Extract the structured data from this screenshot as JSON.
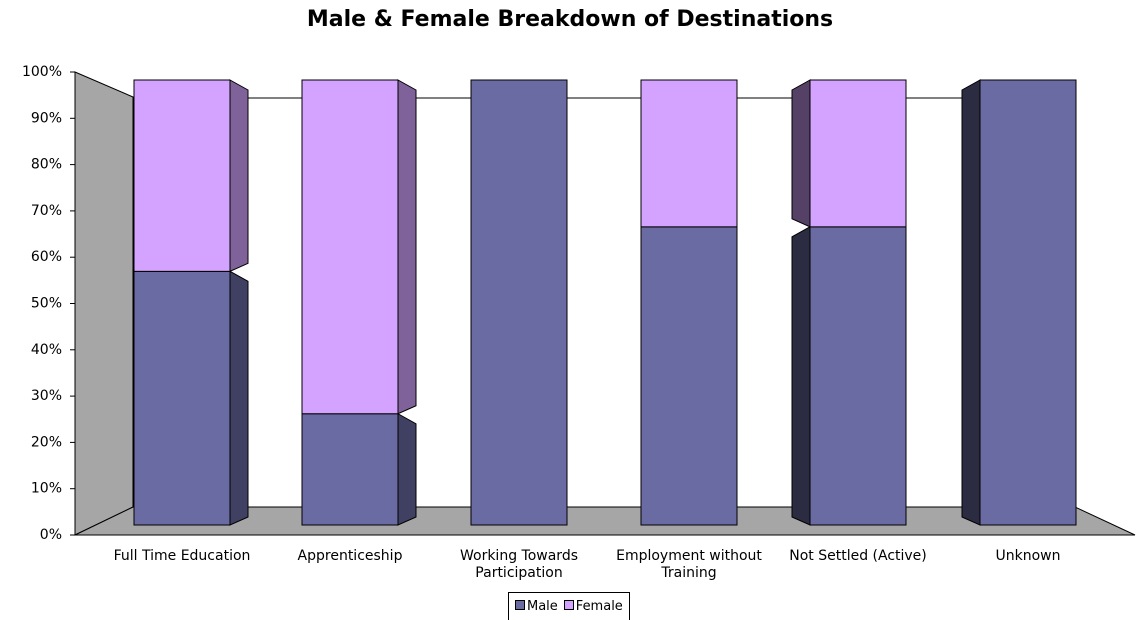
{
  "chart_data": {
    "type": "stacked_bar_3d",
    "title": "Male & Female Breakdown of Destinations",
    "categories": [
      "Full Time Education",
      "Apprenticeship",
      "Working Towards Participation",
      "Employment without Training",
      "Not Settled (Active)",
      "Unknown"
    ],
    "series": [
      {
        "name": "Male",
        "color": "#6b6ba3",
        "values": [
          57,
          25,
          100,
          67,
          67,
          100
        ]
      },
      {
        "name": "Female",
        "color": "#d4a3ff",
        "values": [
          43,
          75,
          0,
          33,
          33,
          0
        ]
      }
    ],
    "ylim": [
      0,
      100
    ],
    "yticks": [
      {
        "value": 0,
        "label": "0%"
      },
      {
        "value": 10,
        "label": "10%"
      },
      {
        "value": 20,
        "label": "20%"
      },
      {
        "value": 30,
        "label": "30%"
      },
      {
        "value": 40,
        "label": "40%"
      },
      {
        "value": 50,
        "label": "50%"
      },
      {
        "value": 60,
        "label": "60%"
      },
      {
        "value": 70,
        "label": "70%"
      },
      {
        "value": 80,
        "label": "80%"
      },
      {
        "value": 90,
        "label": "90%"
      },
      {
        "value": 100,
        "label": "100%"
      }
    ],
    "legend": "bottom"
  }
}
